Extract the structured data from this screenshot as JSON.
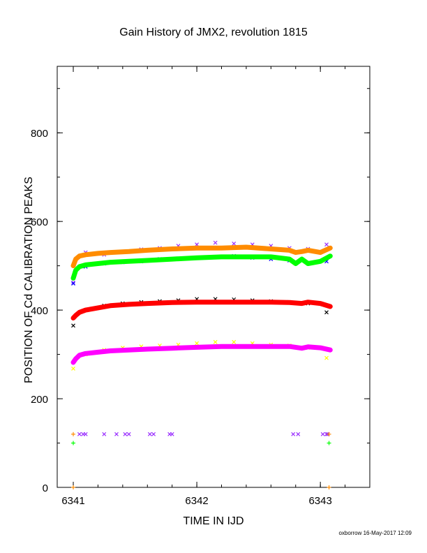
{
  "footer": "oxborrow 16-May-2017 12:09",
  "colors": {
    "black": "#000000",
    "red": "#ff0000",
    "green": "#00ff00",
    "blue": "#0000ff",
    "magenta": "#ff00ff",
    "yellow": "#ffff00",
    "orange": "#ff8c00",
    "purple": "#9b30ff"
  },
  "chart_data": {
    "type": "scatter",
    "title": "Gain History of JMX2, revolution 1815",
    "xlabel": "TIME IN IJD",
    "ylabel": "POSITION OF Cd CALIBRATION PEAKS",
    "xlim": [
      6340.87,
      6343.4
    ],
    "ylim": [
      0,
      950
    ],
    "xticks": [
      6341,
      6342,
      6343
    ],
    "yticks": [
      0,
      200,
      400,
      600,
      800
    ],
    "grid": false,
    "series": [
      {
        "style": "cross",
        "color": "#9b30ff",
        "x": [
          6341.0,
          6341.1,
          6341.25,
          6341.4,
          6341.55,
          6341.7,
          6341.85,
          6342.0,
          6342.15,
          6342.3,
          6342.45,
          6342.6,
          6342.75,
          6342.9,
          6343.05
        ],
        "y": [
          462,
          530,
          525,
          532,
          537,
          540,
          545,
          548,
          552,
          550,
          548,
          545,
          540,
          538,
          548
        ]
      },
      {
        "style": "cross",
        "color": "#0000ff",
        "x": [
          6341.0,
          6341.1,
          6341.25,
          6341.4,
          6341.55,
          6341.7,
          6341.85,
          6342.0,
          6342.15,
          6342.3,
          6342.45,
          6342.6,
          6342.75,
          6342.9,
          6343.05
        ],
        "y": [
          460,
          498,
          505,
          508,
          510,
          515,
          515,
          518,
          520,
          522,
          518,
          515,
          512,
          505,
          510
        ]
      },
      {
        "style": "line",
        "color": "#ff8c00",
        "x": [
          6341.0,
          6341.02,
          6341.05,
          6341.1,
          6341.2,
          6341.3,
          6341.45,
          6341.6,
          6341.8,
          6342.0,
          6342.2,
          6342.4,
          6342.6,
          6342.75,
          6342.8,
          6342.85,
          6342.9,
          6343.0,
          6343.08
        ],
        "y": [
          500,
          515,
          522,
          525,
          528,
          530,
          532,
          535,
          538,
          540,
          540,
          542,
          538,
          535,
          530,
          532,
          535,
          530,
          540
        ]
      },
      {
        "style": "line",
        "color": "#00ff00",
        "x": [
          6341.0,
          6341.02,
          6341.05,
          6341.1,
          6341.2,
          6341.3,
          6341.45,
          6341.6,
          6341.8,
          6342.0,
          6342.2,
          6342.4,
          6342.6,
          6342.75,
          6342.8,
          6342.85,
          6342.9,
          6343.0,
          6343.08
        ],
        "y": [
          472,
          490,
          498,
          502,
          505,
          508,
          510,
          512,
          515,
          518,
          520,
          520,
          520,
          515,
          505,
          515,
          505,
          510,
          522
        ]
      },
      {
        "style": "cross",
        "color": "#000000",
        "x": [
          6341.0,
          6341.1,
          6341.25,
          6341.4,
          6341.55,
          6341.7,
          6341.85,
          6342.0,
          6342.15,
          6342.3,
          6342.45,
          6342.6,
          6342.75,
          6342.9,
          6343.05
        ],
        "y": [
          365,
          400,
          410,
          415,
          418,
          420,
          422,
          425,
          425,
          424,
          422,
          420,
          418,
          415,
          395
        ]
      },
      {
        "style": "line",
        "color": "#ff0000",
        "x": [
          6341.0,
          6341.02,
          6341.05,
          6341.1,
          6341.2,
          6341.3,
          6341.45,
          6341.6,
          6341.8,
          6342.0,
          6342.2,
          6342.4,
          6342.6,
          6342.75,
          6342.85,
          6342.9,
          6343.0,
          6343.08
        ],
        "y": [
          382,
          388,
          395,
          400,
          405,
          410,
          413,
          415,
          417,
          418,
          418,
          418,
          418,
          417,
          415,
          418,
          415,
          408
        ]
      },
      {
        "style": "cross",
        "color": "#ffff00",
        "x": [
          6341.0,
          6341.1,
          6341.25,
          6341.4,
          6341.55,
          6341.7,
          6341.85,
          6342.0,
          6342.15,
          6342.3,
          6342.45,
          6342.6,
          6342.75,
          6342.9,
          6343.05
        ],
        "y": [
          268,
          300,
          310,
          315,
          318,
          320,
          322,
          325,
          328,
          328,
          325,
          322,
          320,
          315,
          292
        ]
      },
      {
        "style": "line",
        "color": "#ff00ff",
        "x": [
          6341.0,
          6341.02,
          6341.05,
          6341.1,
          6341.2,
          6341.3,
          6341.45,
          6341.6,
          6341.8,
          6342.0,
          6342.2,
          6342.4,
          6342.6,
          6342.75,
          6342.85,
          6342.9,
          6343.0,
          6343.08
        ],
        "y": [
          282,
          290,
          298,
          302,
          305,
          308,
          310,
          312,
          314,
          316,
          318,
          318,
          318,
          318,
          314,
          317,
          315,
          310
        ]
      },
      {
        "style": "cross",
        "color": "#9b30ff",
        "x": [
          6341.05,
          6341.08,
          6341.1,
          6341.25,
          6341.35,
          6341.42,
          6341.45,
          6341.62,
          6341.65,
          6341.78,
          6341.8,
          6342.78,
          6342.82,
          6343.02,
          6343.05,
          6343.06
        ],
        "y": [
          120,
          120,
          120,
          120,
          120,
          120,
          120,
          120,
          120,
          120,
          120,
          120,
          120,
          120,
          120,
          120
        ]
      },
      {
        "style": "plus",
        "color": "#ff8c00",
        "x": [
          6341.0,
          6343.07
        ],
        "y": [
          120,
          120
        ]
      },
      {
        "style": "plus",
        "color": "#00ff00",
        "x": [
          6341.0,
          6343.07
        ],
        "y": [
          100,
          100
        ]
      },
      {
        "style": "plus",
        "color": "#ff8c00",
        "x": [
          6341.0,
          6343.07
        ],
        "y": [
          0,
          0
        ]
      }
    ]
  }
}
